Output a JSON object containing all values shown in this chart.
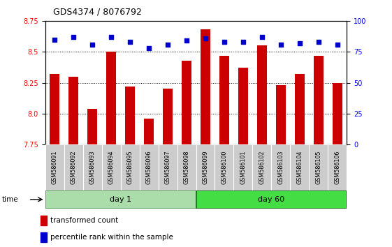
{
  "title": "GDS4374 / 8076792",
  "samples": [
    "GSM586091",
    "GSM586092",
    "GSM586093",
    "GSM586094",
    "GSM586095",
    "GSM586096",
    "GSM586097",
    "GSM586098",
    "GSM586099",
    "GSM586100",
    "GSM586101",
    "GSM586102",
    "GSM586103",
    "GSM586104",
    "GSM586105",
    "GSM586106"
  ],
  "transformed_count": [
    8.32,
    8.3,
    8.04,
    8.5,
    8.22,
    7.96,
    8.2,
    8.43,
    8.68,
    8.47,
    8.37,
    8.55,
    8.23,
    8.32,
    8.47,
    8.25
  ],
  "percentile_rank": [
    85,
    87,
    81,
    87,
    83,
    78,
    81,
    84,
    86,
    83,
    83,
    87,
    81,
    82,
    83,
    81
  ],
  "day1_count": 8,
  "day60_count": 8,
  "ylim_left": [
    7.75,
    8.75
  ],
  "ylim_right": [
    0,
    100
  ],
  "yticks_left": [
    7.75,
    8.0,
    8.25,
    8.5,
    8.75
  ],
  "yticks_right": [
    0,
    25,
    50,
    75,
    100
  ],
  "bar_color": "#cc0000",
  "dot_color": "#0000cc",
  "bar_bottom": 7.75,
  "grid_lines": [
    8.0,
    8.25,
    8.5
  ],
  "day1_color": "#aaddaa",
  "day60_color": "#44dd44",
  "xlabel_area_color": "#cccccc",
  "background_color": "#ffffff"
}
